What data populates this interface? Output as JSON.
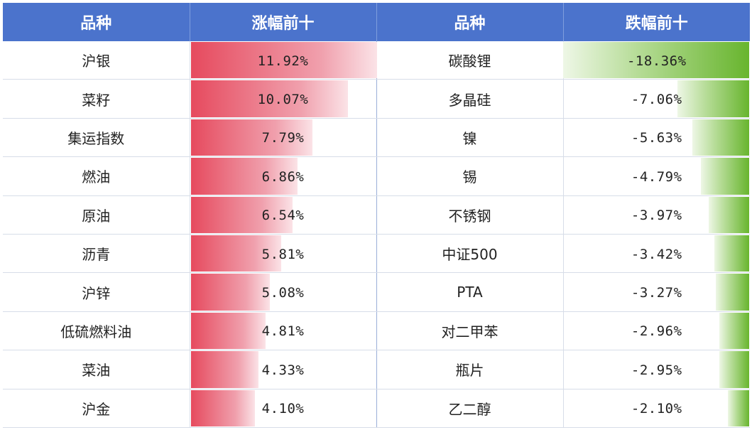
{
  "headers": [
    "品种",
    "涨幅前十",
    "品种",
    "跌幅前十"
  ],
  "colors": {
    "header_bg": "#4b73cc",
    "gain_bar": "#e64a5e",
    "loss_bar": "#68b52e"
  },
  "chart_data": {
    "type": "table",
    "gainers": [
      {
        "name": "沪银",
        "label": "11.92%",
        "value": 11.92
      },
      {
        "name": "菜籽",
        "label": "10.07%",
        "value": 10.07
      },
      {
        "name": "集运指数",
        "label": "7.79%",
        "value": 7.79
      },
      {
        "name": "燃油",
        "label": "6.86%",
        "value": 6.86
      },
      {
        "name": "原油",
        "label": "6.54%",
        "value": 6.54
      },
      {
        "name": "沥青",
        "label": "5.81%",
        "value": 5.81
      },
      {
        "name": "沪锌",
        "label": "5.08%",
        "value": 5.08
      },
      {
        "name": "低硫燃料油",
        "label": "4.81%",
        "value": 4.81
      },
      {
        "name": "菜油",
        "label": "4.33%",
        "value": 4.33
      },
      {
        "name": "沪金",
        "label": "4.10%",
        "value": 4.1
      }
    ],
    "losers": [
      {
        "name": "碳酸锂",
        "label": "-18.36%",
        "value": -18.36
      },
      {
        "name": "多晶硅",
        "label": "-7.06%",
        "value": -7.06
      },
      {
        "name": "镍",
        "label": "-5.63%",
        "value": -5.63
      },
      {
        "name": "锡",
        "label": "-4.79%",
        "value": -4.79
      },
      {
        "name": "不锈钢",
        "label": "-3.97%",
        "value": -3.97
      },
      {
        "name": "中证500",
        "label": "-3.42%",
        "value": -3.42
      },
      {
        "name": "PTA",
        "label": "-3.27%",
        "value": -3.27
      },
      {
        "name": "对二甲苯",
        "label": "-2.96%",
        "value": -2.96
      },
      {
        "name": "瓶片",
        "label": "-2.95%",
        "value": -2.95
      },
      {
        "name": "乙二醇",
        "label": "-2.10%",
        "value": -2.1
      }
    ]
  }
}
